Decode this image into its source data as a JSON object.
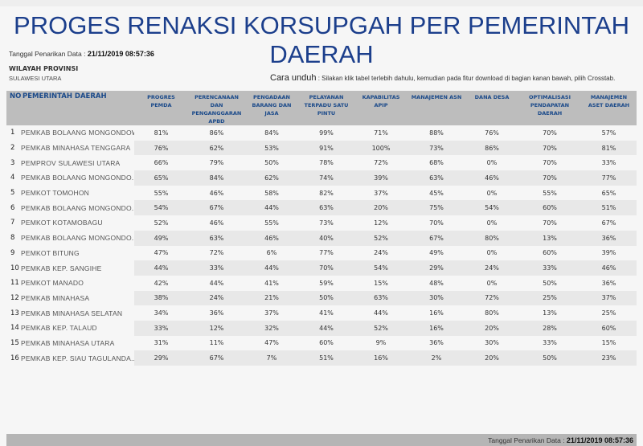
{
  "header": {
    "title": "PROGES RENAKSI KORSUPGAH PER PEMERINTAH DAERAH",
    "pull_date_label": "Tanggal Penarikan Data : ",
    "pull_date_value": "21/11/2019 08:57:36"
  },
  "region": {
    "label": "WILAYAH PROVINSI",
    "value": "SULAWESI UTARA"
  },
  "instructions": {
    "label": "Cara unduh",
    "text": " : Silakan klik tabel terlebih dahulu, kemudian pada fitur download di bagian kanan bawah, pilih Crosstab."
  },
  "table": {
    "columns": [
      "NO",
      "PEMERINTAH DAERAH",
      "PROGRES PEMDA",
      "PERENCANAAN DAN PENGANGGARAN APBD",
      "PENGADAAN BARANG DAN JASA",
      "PELAYANAN TERPADU SATU PINTU",
      "KAPABILITAS APIP",
      "MANAJEMEN ASN",
      "DANA DESA",
      "OPTIMALISASI PENDAPATAN DAERAH",
      "MANAJEMEN ASET DAERAH"
    ],
    "rows": [
      [
        "1",
        "PEMKAB BOLAANG MONGONDOW",
        "81%",
        "86%",
        "84%",
        "99%",
        "71%",
        "88%",
        "76%",
        "70%",
        "57%"
      ],
      [
        "2",
        "PEMKAB MINAHASA TENGGARA",
        "76%",
        "62%",
        "53%",
        "91%",
        "100%",
        "73%",
        "86%",
        "70%",
        "81%"
      ],
      [
        "3",
        "PEMPROV SULAWESI UTARA",
        "66%",
        "79%",
        "50%",
        "78%",
        "72%",
        "68%",
        "0%",
        "70%",
        "33%"
      ],
      [
        "4",
        "PEMKAB BOLAANG MONGONDO..",
        "65%",
        "84%",
        "62%",
        "74%",
        "39%",
        "63%",
        "46%",
        "70%",
        "77%"
      ],
      [
        "5",
        "PEMKOT TOMOHON",
        "55%",
        "46%",
        "58%",
        "82%",
        "37%",
        "45%",
        "0%",
        "55%",
        "65%"
      ],
      [
        "6",
        "PEMKAB BOLAANG MONGONDO..",
        "54%",
        "67%",
        "44%",
        "63%",
        "20%",
        "75%",
        "54%",
        "60%",
        "51%"
      ],
      [
        "7",
        "PEMKOT KOTAMOBAGU",
        "52%",
        "46%",
        "55%",
        "73%",
        "12%",
        "70%",
        "0%",
        "70%",
        "67%"
      ],
      [
        "8",
        "PEMKAB BOLAANG MONGONDO..",
        "49%",
        "63%",
        "46%",
        "40%",
        "52%",
        "67%",
        "80%",
        "13%",
        "36%"
      ],
      [
        "9",
        "PEMKOT BITUNG",
        "47%",
        "72%",
        "6%",
        "77%",
        "24%",
        "49%",
        "0%",
        "60%",
        "39%"
      ],
      [
        "10",
        "PEMKAB KEP. SANGIHE",
        "44%",
        "33%",
        "44%",
        "70%",
        "54%",
        "29%",
        "24%",
        "33%",
        "46%"
      ],
      [
        "11",
        "PEMKOT MANADO",
        "42%",
        "44%",
        "41%",
        "59%",
        "15%",
        "48%",
        "0%",
        "50%",
        "36%"
      ],
      [
        "12",
        "PEMKAB MINAHASA",
        "38%",
        "24%",
        "21%",
        "50%",
        "63%",
        "30%",
        "72%",
        "25%",
        "37%"
      ],
      [
        "13",
        "PEMKAB MINAHASA SELATAN",
        "34%",
        "36%",
        "37%",
        "41%",
        "44%",
        "16%",
        "80%",
        "13%",
        "25%"
      ],
      [
        "14",
        "PEMKAB KEP. TALAUD",
        "33%",
        "12%",
        "32%",
        "44%",
        "52%",
        "16%",
        "20%",
        "28%",
        "60%"
      ],
      [
        "15",
        "PEMKAB MINAHASA UTARA",
        "31%",
        "11%",
        "47%",
        "60%",
        "9%",
        "36%",
        "30%",
        "33%",
        "15%"
      ],
      [
        "16",
        "PEMKAB KEP. SIAU TAGULANDA..",
        "29%",
        "67%",
        "7%",
        "51%",
        "16%",
        "2%",
        "20%",
        "50%",
        "23%"
      ]
    ]
  },
  "footer": {
    "pull_date_label": "Tanggal Penarikan Data : ",
    "pull_date_value": "21/11/2019 08:57:36"
  },
  "colors": {
    "title": "#1c3f8c",
    "header_text": "#1b4a8a",
    "header_bg": "#bdbdbd",
    "stripe_bg": "#e8e8e8",
    "footer_bg": "#b5b5b5",
    "page_bg": "#f6f6f6"
  }
}
